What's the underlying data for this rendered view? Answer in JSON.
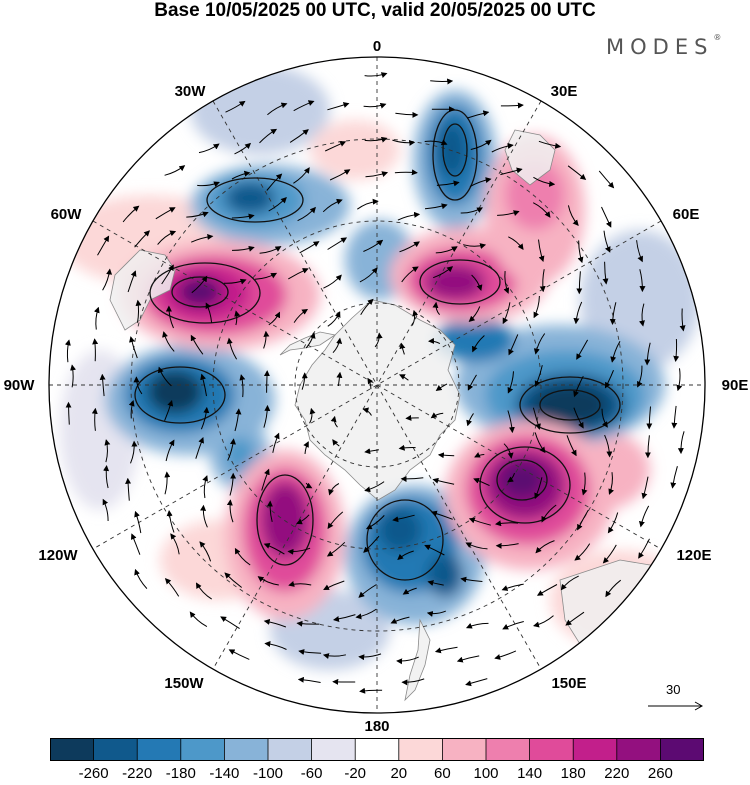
{
  "title": "Base 10/05/2025 00 UTC, valid 20/05/2025 00 UTC",
  "brand": {
    "name": "MODES",
    "mark": "®"
  },
  "longitude_labels": [
    "0",
    "30E",
    "60E",
    "90E",
    "120E",
    "150E",
    "180",
    "150W",
    "120W",
    "90W",
    "60W",
    "30W"
  ],
  "reference_vector": {
    "label": "30"
  },
  "colorbar": {
    "ticks": [
      "-260",
      "-220",
      "-180",
      "-140",
      "-100",
      "-60",
      "-20",
      "20",
      "60",
      "100",
      "140",
      "180",
      "220",
      "260"
    ],
    "colors": [
      "#0d3a5c",
      "#10598c",
      "#2479b4",
      "#4d98c9",
      "#88b3d8",
      "#c4d0e6",
      "#e5e4f0",
      "#ffffff",
      "#fcd8d8",
      "#f7b2c2",
      "#ee7fae",
      "#e04b9a",
      "#c21f8b",
      "#93107f",
      "#5c0a72"
    ]
  },
  "map": {
    "projection": "south-polar-stereographic",
    "land_color": "#f0f0f0",
    "ocean_color": "#ffffff",
    "graticule": "dashed"
  }
}
